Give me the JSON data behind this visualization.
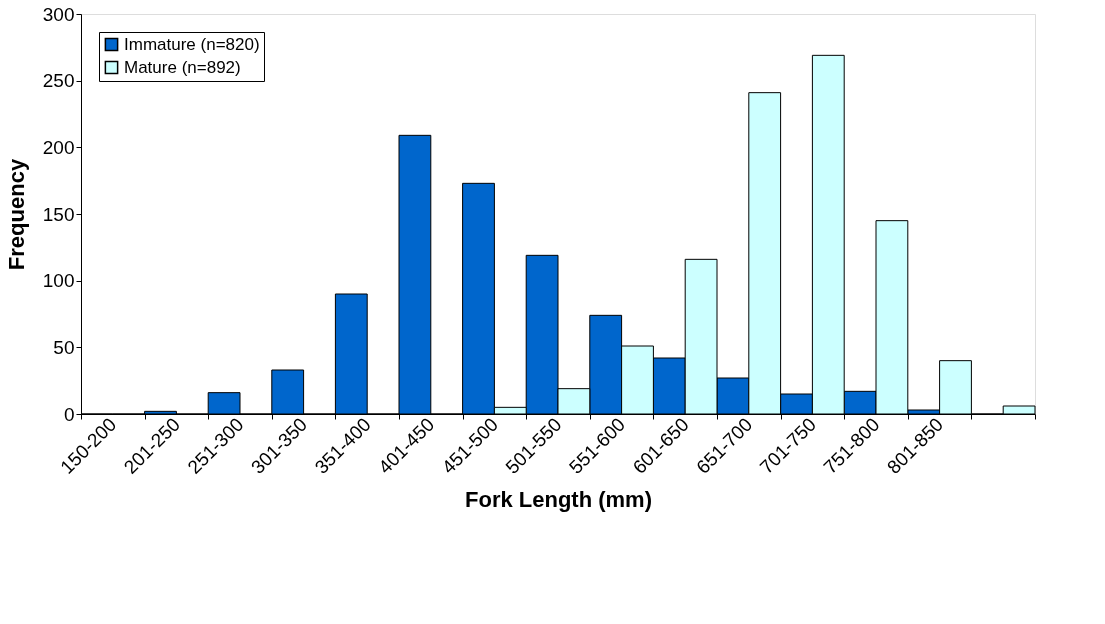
{
  "chart_data": {
    "type": "bar",
    "xlabel": "Fork Length (mm)",
    "ylabel": "Frequency",
    "categories": [
      "150-200",
      "201-250",
      "251-300",
      "301-350",
      "351-400",
      "401-450",
      "451-500",
      "501-550",
      "551-600",
      "601-650",
      "651-700",
      "701-750",
      "751-800",
      "801-850",
      null
    ],
    "series": [
      {
        "name": "Immature (n=820)",
        "color": "#0066cc",
        "values": [
          0,
          2,
          16,
          33,
          90,
          209,
          173,
          119,
          74,
          42,
          27,
          15,
          17,
          3,
          0
        ]
      },
      {
        "name": "Mature (n=892)",
        "color": "#ccffff",
        "values": [
          0,
          0,
          0,
          0,
          0,
          0,
          5,
          19,
          51,
          116,
          241,
          269,
          145,
          40,
          6
        ]
      }
    ],
    "ylim": [
      0,
      300
    ],
    "yticks": [
      0,
      50,
      100,
      150,
      200,
      250,
      300
    ],
    "grid": false,
    "legend": "top left"
  }
}
